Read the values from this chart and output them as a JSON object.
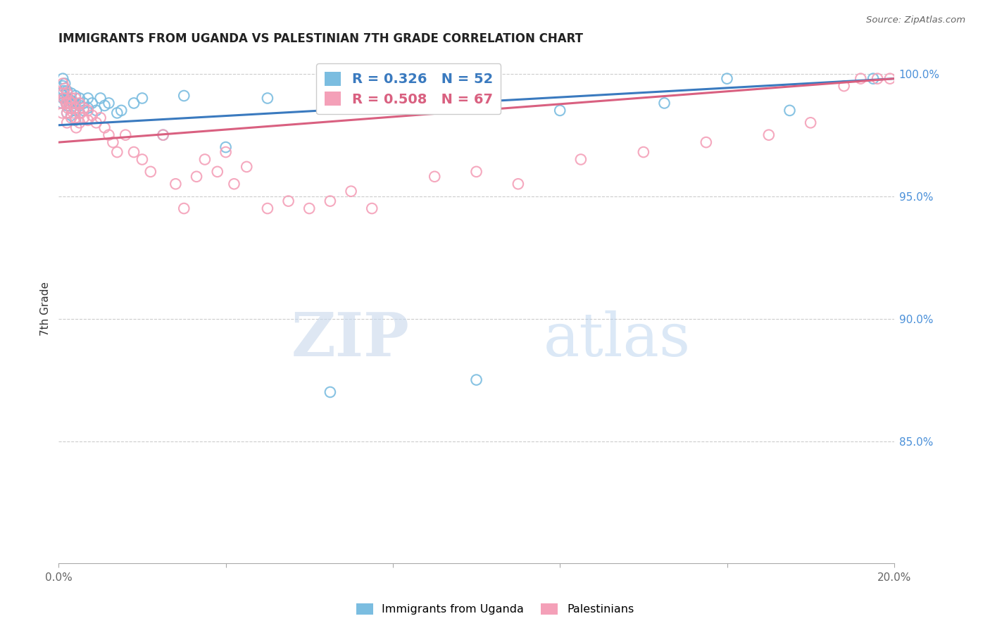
{
  "title": "IMMIGRANTS FROM UGANDA VS PALESTINIAN 7TH GRADE CORRELATION CHART",
  "source": "Source: ZipAtlas.com",
  "ylabel": "7th Grade",
  "ylabel_right_ticks": [
    "100.0%",
    "95.0%",
    "90.0%",
    "85.0%"
  ],
  "ylabel_right_values": [
    1.0,
    0.95,
    0.9,
    0.85
  ],
  "legend_blue_label": "R = 0.326   N = 52",
  "legend_pink_label": "R = 0.508   N = 67",
  "watermark_zip": "ZIP",
  "watermark_atlas": "atlas",
  "blue_color": "#7bbde0",
  "pink_color": "#f4a0b8",
  "blue_line_color": "#3a7abf",
  "pink_line_color": "#d96080",
  "xmin": 0.0,
  "xmax": 0.2,
  "ymin": 0.8,
  "ymax": 1.008,
  "blue_x": [
    0.0005,
    0.0008,
    0.001,
    0.001,
    0.001,
    0.0012,
    0.0015,
    0.0015,
    0.0018,
    0.002,
    0.002,
    0.002,
    0.002,
    0.0022,
    0.0025,
    0.003,
    0.003,
    0.003,
    0.003,
    0.0035,
    0.004,
    0.004,
    0.004,
    0.004,
    0.005,
    0.005,
    0.005,
    0.006,
    0.006,
    0.007,
    0.007,
    0.008,
    0.009,
    0.01,
    0.011,
    0.012,
    0.014,
    0.015,
    0.018,
    0.02,
    0.025,
    0.03,
    0.04,
    0.05,
    0.065,
    0.08,
    0.1,
    0.12,
    0.145,
    0.16,
    0.175,
    0.195
  ],
  "blue_y": [
    0.992,
    0.988,
    0.998,
    0.995,
    0.99,
    0.993,
    0.996,
    0.99,
    0.988,
    0.993,
    0.99,
    0.987,
    0.984,
    0.99,
    0.988,
    0.992,
    0.989,
    0.986,
    0.983,
    0.988,
    0.991,
    0.988,
    0.985,
    0.981,
    0.99,
    0.987,
    0.984,
    0.988,
    0.985,
    0.99,
    0.986,
    0.988,
    0.985,
    0.99,
    0.987,
    0.988,
    0.984,
    0.985,
    0.988,
    0.99,
    0.975,
    0.991,
    0.97,
    0.99,
    0.87,
    0.995,
    0.875,
    0.985,
    0.988,
    0.998,
    0.985,
    0.998
  ],
  "pink_x": [
    0.0005,
    0.0008,
    0.001,
    0.001,
    0.0012,
    0.0015,
    0.0018,
    0.002,
    0.002,
    0.002,
    0.002,
    0.0022,
    0.0025,
    0.003,
    0.003,
    0.003,
    0.0032,
    0.0035,
    0.004,
    0.004,
    0.004,
    0.0042,
    0.005,
    0.005,
    0.005,
    0.006,
    0.006,
    0.007,
    0.007,
    0.008,
    0.009,
    0.01,
    0.011,
    0.012,
    0.013,
    0.014,
    0.016,
    0.018,
    0.02,
    0.022,
    0.025,
    0.028,
    0.03,
    0.033,
    0.035,
    0.038,
    0.04,
    0.042,
    0.045,
    0.05,
    0.055,
    0.06,
    0.065,
    0.07,
    0.075,
    0.09,
    0.1,
    0.11,
    0.125,
    0.14,
    0.155,
    0.17,
    0.18,
    0.188,
    0.192,
    0.196,
    0.199
  ],
  "pink_y": [
    0.988,
    0.984,
    0.996,
    0.992,
    0.99,
    0.994,
    0.988,
    0.992,
    0.988,
    0.984,
    0.98,
    0.986,
    0.989,
    0.99,
    0.986,
    0.982,
    0.988,
    0.984,
    0.99,
    0.986,
    0.982,
    0.978,
    0.988,
    0.984,
    0.98,
    0.986,
    0.982,
    0.985,
    0.981,
    0.983,
    0.98,
    0.982,
    0.978,
    0.975,
    0.972,
    0.968,
    0.975,
    0.968,
    0.965,
    0.96,
    0.975,
    0.955,
    0.945,
    0.958,
    0.965,
    0.96,
    0.968,
    0.955,
    0.962,
    0.945,
    0.948,
    0.945,
    0.948,
    0.952,
    0.945,
    0.958,
    0.96,
    0.955,
    0.965,
    0.968,
    0.972,
    0.975,
    0.98,
    0.995,
    0.998,
    0.998,
    0.998
  ]
}
